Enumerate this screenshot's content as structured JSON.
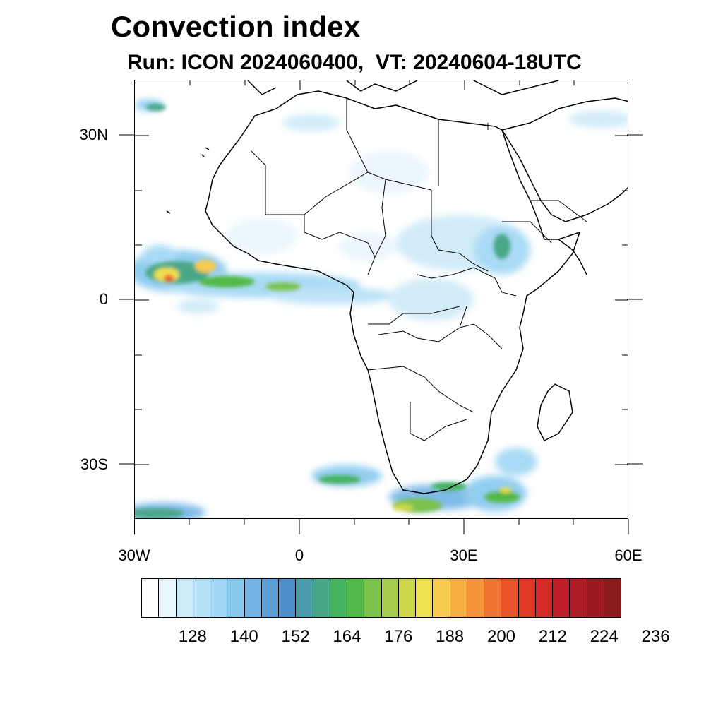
{
  "title": "Convection index",
  "subtitle": "Run: ICON 2024060400,  VT: 20240604-18UTC",
  "map": {
    "lat_labels": [
      {
        "text": "30N",
        "lat": 30
      },
      {
        "text": "0",
        "lat": 0
      },
      {
        "text": "30S",
        "lat": -30
      }
    ],
    "lon_labels": [
      {
        "text": "30W",
        "lon": -30
      },
      {
        "text": "0",
        "lon": 0
      },
      {
        "text": "30E",
        "lon": 30
      },
      {
        "text": "60E",
        "lon": 60
      }
    ],
    "lon_range": [
      -30,
      60
    ],
    "lat_range": [
      -40,
      40
    ]
  },
  "colorbar": {
    "colors": [
      "#ffffff",
      "#e8f5fc",
      "#cdeaf8",
      "#b6e0f6",
      "#a0d7f4",
      "#86c8ee",
      "#72b4e5",
      "#5b9ed6",
      "#4d8fc9",
      "#4a9aa8",
      "#48a787",
      "#44b25f",
      "#52b847",
      "#7cc24d",
      "#a5cc4f",
      "#cdd84a",
      "#eee04f",
      "#f8cc4f",
      "#f6af41",
      "#f4943a",
      "#ef7530",
      "#e85428",
      "#e03a26",
      "#d42a28",
      "#c01f27",
      "#ad1c24",
      "#9c1920",
      "#8b1a1c"
    ],
    "tick_labels": [
      "128",
      "140",
      "152",
      "164",
      "176",
      "188",
      "200",
      "212",
      "224",
      "236"
    ]
  }
}
